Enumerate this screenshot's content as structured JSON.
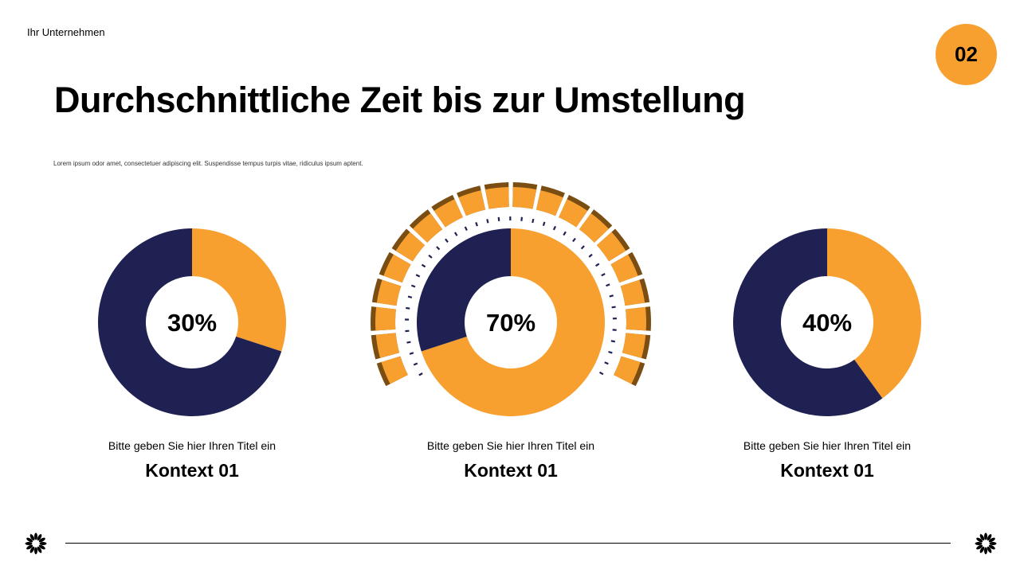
{
  "header": {
    "company": "Ihr Unternehmen",
    "page_number": "02",
    "title": "Durchschnittliche Zeit bis zur Umstellung",
    "subtitle": "Lorem ipsum odor amet, consectetuer adipiscing elit. Suspendisse tempus turpis vitae, ridiculus ipsum aptent."
  },
  "colors": {
    "orange": "#f7a030",
    "navy": "#1f2152",
    "dark_brown": "#7a4d12"
  },
  "chart_data": [
    {
      "type": "pie",
      "label": "30%",
      "values": [
        30,
        70
      ],
      "colors": [
        "#f7a030",
        "#1f2152"
      ],
      "caption": "Bitte geben Sie hier Ihren Titel ein",
      "context": "Kontext 01"
    },
    {
      "type": "pie",
      "label": "70%",
      "values": [
        70,
        30
      ],
      "colors": [
        "#f7a030",
        "#1f2152"
      ],
      "caption": "Bitte geben Sie hier Ihren Titel ein",
      "context": "Kontext 01"
    },
    {
      "type": "pie",
      "label": "40%",
      "values": [
        40,
        60
      ],
      "colors": [
        "#f7a030",
        "#1f2152"
      ],
      "caption": "Bitte geben Sie hier Ihren Titel ein",
      "context": "Kontext 01"
    }
  ]
}
